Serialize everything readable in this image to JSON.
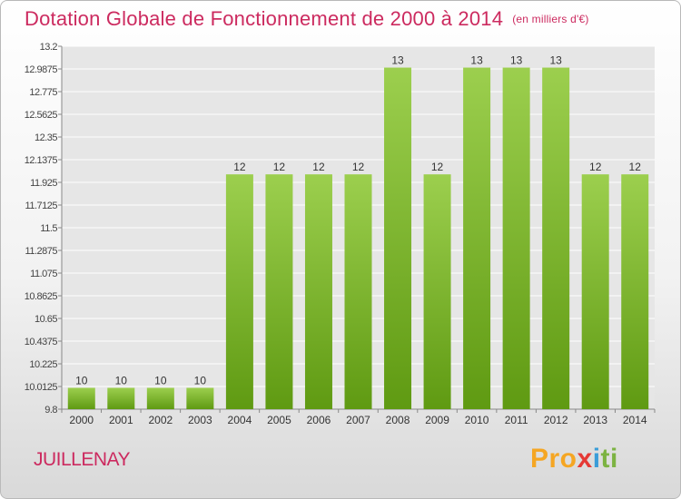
{
  "title": "Dotation Globale de Fonctionnement de 2000 à 2014",
  "unit": "(en milliers d'€)",
  "commune": "JUILLENAY",
  "brand": {
    "p1": "Pro",
    "p2": "x",
    "p3": "i",
    "p4": "ti"
  },
  "colors": {
    "bar_top": "#9ccf4e",
    "bar_bottom": "#5f9a12",
    "title": "#cc2a5f",
    "grid": "#ffffff",
    "plot_bg": "#e6e6e6"
  },
  "chart_data": {
    "type": "bar",
    "categories": [
      "2000",
      "2001",
      "2002",
      "2003",
      "2004",
      "2005",
      "2006",
      "2007",
      "2008",
      "2009",
      "2010",
      "2011",
      "2012",
      "2013",
      "2014"
    ],
    "values": [
      10,
      10,
      10,
      10,
      12,
      12,
      12,
      12,
      13,
      12,
      13,
      13,
      13,
      12,
      12
    ],
    "labels": [
      "10",
      "10",
      "10",
      "10",
      "12",
      "12",
      "12",
      "12",
      "13",
      "12",
      "13",
      "13",
      "13",
      "12",
      "12"
    ],
    "ylim": [
      9.8,
      13.2
    ],
    "yticks": [
      "13.2",
      "12.9875",
      "12.775",
      "12.5625",
      "12.35",
      "12.1375",
      "11.925",
      "11.7125",
      "11.5",
      "11.2875",
      "11.075",
      "10.8625",
      "10.65",
      "10.4375",
      "10.225",
      "10.0125",
      "9.8"
    ],
    "grid": true,
    "title": "Dotation Globale de Fonctionnement de 2000 à 2014",
    "xlabel": "",
    "ylabel": ""
  }
}
